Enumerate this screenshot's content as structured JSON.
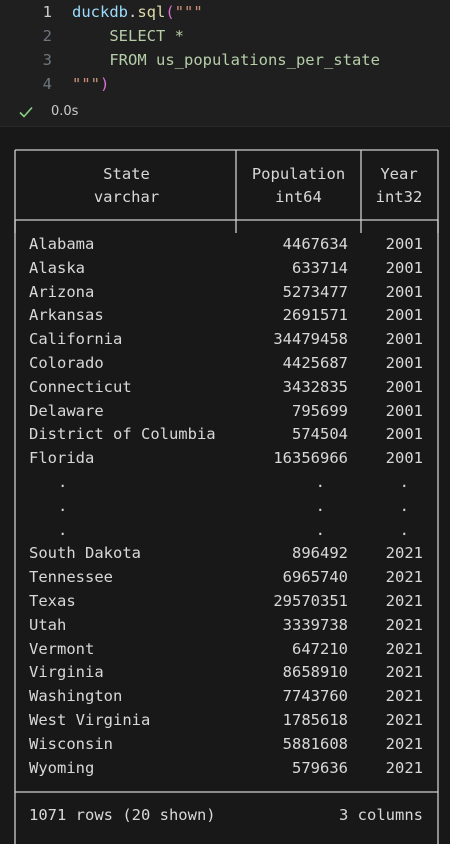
{
  "editor": {
    "lines": [
      {
        "number": "1",
        "tokens": [
          {
            "text": "duckdb",
            "kind": "id"
          },
          {
            "text": ".",
            "kind": "pun"
          },
          {
            "text": "sql",
            "kind": "fn"
          },
          {
            "text": "(",
            "kind": "par"
          },
          {
            "text": "\"\"\"",
            "kind": "str"
          }
        ]
      },
      {
        "number": "2",
        "tokens": [
          {
            "text": "    SELECT *",
            "kind": "sql"
          }
        ]
      },
      {
        "number": "3",
        "tokens": [
          {
            "text": "    FROM us_populations_per_state",
            "kind": "sql"
          }
        ]
      },
      {
        "number": "4",
        "tokens": [
          {
            "text": "\"\"\"",
            "kind": "str"
          },
          {
            "text": ")",
            "kind": "par"
          }
        ]
      }
    ],
    "active_line": "1"
  },
  "status": {
    "duration": "0.0s",
    "icon": "check-icon",
    "color": "#89d185"
  },
  "table": {
    "columns": [
      {
        "name": "State",
        "type": "varchar"
      },
      {
        "name": "Population",
        "type": "int64"
      },
      {
        "name": "Year",
        "type": "int32"
      }
    ],
    "top_rows": [
      [
        "Alabama",
        "4467634",
        "2001"
      ],
      [
        "Alaska",
        "633714",
        "2001"
      ],
      [
        "Arizona",
        "5273477",
        "2001"
      ],
      [
        "Arkansas",
        "2691571",
        "2001"
      ],
      [
        "California",
        "34479458",
        "2001"
      ],
      [
        "Colorado",
        "4425687",
        "2001"
      ],
      [
        "Connecticut",
        "3432835",
        "2001"
      ],
      [
        "Delaware",
        "795699",
        "2001"
      ],
      [
        "District of Columbia",
        "574504",
        "2001"
      ],
      [
        "Florida",
        "16356966",
        "2001"
      ]
    ],
    "ellipsis": ".",
    "bottom_rows": [
      [
        "South Dakota",
        "896492",
        "2021"
      ],
      [
        "Tennessee",
        "6965740",
        "2021"
      ],
      [
        "Texas",
        "29570351",
        "2021"
      ],
      [
        "Utah",
        "3339738",
        "2021"
      ],
      [
        "Vermont",
        "647210",
        "2021"
      ],
      [
        "Virginia",
        "8658910",
        "2021"
      ],
      [
        "Washington",
        "7743760",
        "2021"
      ],
      [
        "West Virginia",
        "1785618",
        "2021"
      ],
      [
        "Wisconsin",
        "5881608",
        "2021"
      ],
      [
        "Wyoming",
        "579636",
        "2021"
      ]
    ],
    "footer_left": "1071 rows (20 shown)",
    "footer_right": "3 columns"
  }
}
